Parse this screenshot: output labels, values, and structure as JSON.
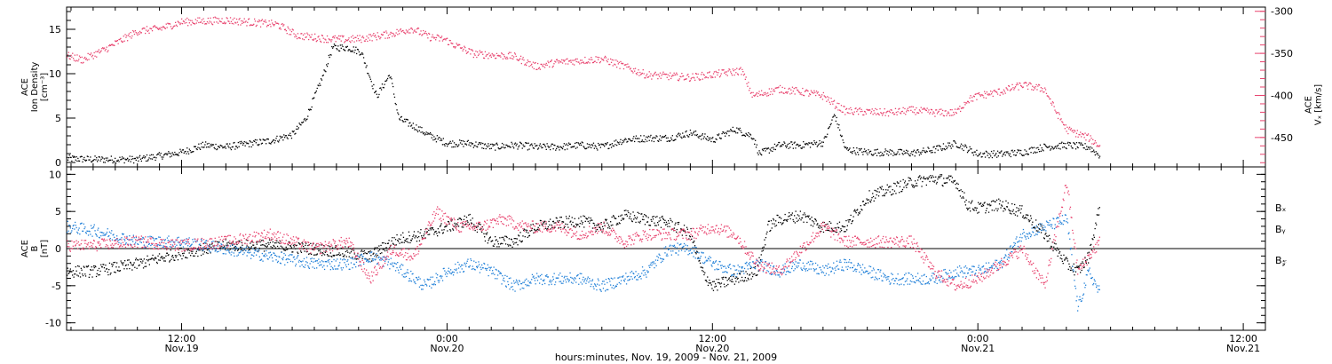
{
  "x_axis": {
    "caption": "hours:minutes, Nov. 19, 2009 - Nov. 21, 2009",
    "ticks": [
      {
        "time": "12:00",
        "date": "Nov.19",
        "hours": 12
      },
      {
        "time": "0:00",
        "date": "Nov.20",
        "hours": 24
      },
      {
        "time": "12:00",
        "date": "Nov.20",
        "hours": 36
      },
      {
        "time": "0:00",
        "date": "Nov.21",
        "hours": 48
      },
      {
        "time": "12:00",
        "date": "Nov.21",
        "hours": 60
      }
    ]
  },
  "colors": {
    "black": "#000000",
    "pink": "#e8436e",
    "blue": "#1f7fd8"
  },
  "chart_data": [
    {
      "type": "scatter",
      "name_panel": "top",
      "xlim_hours": [
        6.8,
        61.0
      ],
      "left_axis": {
        "label_lines": [
          "ACE",
          "Ion Density",
          "[cm⁻³]"
        ],
        "ylim": [
          -0.5,
          17.5
        ],
        "ticks": [
          "0",
          "5",
          "10",
          "15"
        ]
      },
      "right_axis": {
        "label_lines": [
          "ACE",
          "Vₓ [km/s]"
        ],
        "ylim": [
          -485,
          -295
        ],
        "ticks": [
          "-300",
          "-350",
          "-400",
          "-450"
        ]
      },
      "series": [
        {
          "axis": "left",
          "color": "#000000",
          "points": [
            [
              6.8,
              0.5
            ],
            [
              8,
              0.4
            ],
            [
              10,
              0.4
            ],
            [
              12,
              1.2
            ],
            [
              13,
              2.0
            ],
            [
              14,
              1.8
            ],
            [
              16,
              2.5
            ],
            [
              17,
              3.2
            ],
            [
              17.6,
              5
            ],
            [
              18.4,
              10
            ],
            [
              18.8,
              13
            ],
            [
              19.5,
              13
            ],
            [
              20.1,
              12.5
            ],
            [
              20.8,
              7.5
            ],
            [
              21.4,
              10
            ],
            [
              21.8,
              5
            ],
            [
              22.6,
              4
            ],
            [
              23.1,
              3.2
            ],
            [
              24,
              2.2
            ],
            [
              25,
              2.2
            ],
            [
              26,
              1.8
            ],
            [
              27,
              2.0
            ],
            [
              28,
              1.8
            ],
            [
              29,
              1.8
            ],
            [
              30,
              2.0
            ],
            [
              31,
              1.8
            ],
            [
              32,
              2.6
            ],
            [
              33,
              2.8
            ],
            [
              34,
              2.8
            ],
            [
              35,
              3.4
            ],
            [
              36,
              2.6
            ],
            [
              37,
              3.8
            ],
            [
              37.8,
              3.0
            ],
            [
              38.1,
              1.0
            ],
            [
              39,
              2.0
            ],
            [
              40,
              2.0
            ],
            [
              41,
              2.3
            ],
            [
              41.5,
              5.5
            ],
            [
              42,
              1.5
            ],
            [
              43,
              1.2
            ],
            [
              44,
              1.2
            ],
            [
              45,
              1.1
            ],
            [
              46,
              1.5
            ],
            [
              47,
              2.2
            ],
            [
              48,
              1.0
            ],
            [
              49,
              1.0
            ],
            [
              50,
              1.2
            ],
            [
              51,
              1.8
            ],
            [
              52,
              2.0
            ],
            [
              53,
              1.8
            ],
            [
              53.5,
              0.8
            ]
          ]
        },
        {
          "axis": "right",
          "color": "#e8436e",
          "points": [
            [
              6.8,
              -352
            ],
            [
              7.5,
              -357
            ],
            [
              8.5,
              -345
            ],
            [
              10,
              -323
            ],
            [
              11,
              -320
            ],
            [
              12,
              -312
            ],
            [
              14,
              -310
            ],
            [
              16.3,
              -315
            ],
            [
              17.2,
              -328
            ],
            [
              18.5,
              -332
            ],
            [
              19.5,
              -333
            ],
            [
              20.1,
              -332
            ],
            [
              21.5,
              -326
            ],
            [
              22.4,
              -320
            ],
            [
              23.2,
              -330
            ],
            [
              23.9,
              -333
            ],
            [
              24.2,
              -338
            ],
            [
              25.2,
              -350
            ],
            [
              27,
              -353
            ],
            [
              28,
              -365
            ],
            [
              29,
              -360
            ],
            [
              31,
              -356
            ],
            [
              32,
              -365
            ],
            [
              33,
              -375
            ],
            [
              35,
              -378
            ],
            [
              37.3,
              -370
            ],
            [
              37.8,
              -400
            ],
            [
              39,
              -392
            ],
            [
              40,
              -395
            ],
            [
              41,
              -400
            ],
            [
              41.5,
              -410
            ],
            [
              42,
              -418
            ],
            [
              44,
              -420
            ],
            [
              45,
              -417
            ],
            [
              46,
              -420
            ],
            [
              47,
              -420
            ],
            [
              47.5,
              -405
            ],
            [
              48,
              -400
            ],
            [
              49,
              -395
            ],
            [
              50,
              -387
            ],
            [
              51,
              -392
            ],
            [
              51.5,
              -418
            ],
            [
              52,
              -440
            ],
            [
              53,
              -450
            ],
            [
              53.5,
              -460
            ]
          ]
        }
      ]
    },
    {
      "type": "scatter",
      "name_panel": "bottom",
      "xlim_hours": [
        6.8,
        61.0
      ],
      "left_axis": {
        "label_lines": [
          "ACE",
          "B",
          "[nT]"
        ],
        "ylim": [
          -11,
          11
        ],
        "ticks": [
          "10",
          "5",
          "0",
          "-5",
          "-10"
        ]
      },
      "zero_line": true,
      "legend": {
        "placement": "right",
        "entries": [
          "Bₓ",
          "Bᵧ",
          "B𝓏"
        ]
      },
      "series": [
        {
          "name": "Bₓ",
          "color": "#000000",
          "points": [
            [
              6.8,
              -3
            ],
            [
              8,
              -3
            ],
            [
              10,
              -2
            ],
            [
              12,
              -0.5
            ],
            [
              14,
              0.5
            ],
            [
              16,
              0.5
            ],
            [
              18,
              0
            ],
            [
              19.5,
              -0.5
            ],
            [
              20.5,
              -1
            ],
            [
              21.5,
              1
            ],
            [
              22,
              1.5
            ],
            [
              23,
              2
            ],
            [
              24,
              3
            ],
            [
              25,
              4
            ],
            [
              26,
              1
            ],
            [
              27,
              1
            ],
            [
              28,
              3
            ],
            [
              29,
              3.5
            ],
            [
              30,
              3.8
            ],
            [
              31,
              3
            ],
            [
              32,
              4.5
            ],
            [
              33,
              4
            ],
            [
              34,
              3.5
            ],
            [
              35,
              2
            ],
            [
              35.5,
              -3
            ],
            [
              36,
              -5
            ],
            [
              37,
              -4
            ],
            [
              38,
              -3
            ],
            [
              38.5,
              3
            ],
            [
              39,
              4
            ],
            [
              40,
              4.5
            ],
            [
              41,
              3
            ],
            [
              42,
              3
            ],
            [
              43,
              7
            ],
            [
              44,
              8
            ],
            [
              45,
              9
            ],
            [
              46,
              9.5
            ],
            [
              47,
              9
            ],
            [
              47.5,
              6
            ],
            [
              48,
              5.5
            ],
            [
              49,
              6
            ],
            [
              50,
              5
            ],
            [
              51,
              2
            ],
            [
              52,
              -2
            ],
            [
              52.5,
              -3
            ],
            [
              53,
              -1
            ],
            [
              53.5,
              6
            ]
          ]
        },
        {
          "name": "Bᵧ",
          "color": "#1f7fd8",
          "points": [
            [
              6.8,
              3
            ],
            [
              8,
              2.5
            ],
            [
              10,
              1
            ],
            [
              12,
              1
            ],
            [
              14,
              0
            ],
            [
              16,
              -1
            ],
            [
              18,
              -2
            ],
            [
              19.5,
              -2
            ],
            [
              20.5,
              -1
            ],
            [
              21.5,
              -2
            ],
            [
              22,
              -3
            ],
            [
              23,
              -5
            ],
            [
              24,
              -3
            ],
            [
              25,
              -2
            ],
            [
              26,
              -3
            ],
            [
              27,
              -5
            ],
            [
              28,
              -4
            ],
            [
              29,
              -4
            ],
            [
              30,
              -4
            ],
            [
              31,
              -5
            ],
            [
              32,
              -4
            ],
            [
              33,
              -3
            ],
            [
              34,
              0
            ],
            [
              35,
              0
            ],
            [
              36,
              -2
            ],
            [
              37,
              -3
            ],
            [
              38,
              -2
            ],
            [
              39,
              -3
            ],
            [
              40,
              -2
            ],
            [
              41,
              -3
            ],
            [
              42,
              -2
            ],
            [
              43,
              -3
            ],
            [
              44,
              -4
            ],
            [
              45,
              -4
            ],
            [
              46,
              -4
            ],
            [
              47,
              -3
            ],
            [
              48,
              -3
            ],
            [
              49,
              -2
            ],
            [
              50,
              2
            ],
            [
              51,
              3
            ],
            [
              52,
              4
            ],
            [
              52.5,
              -8
            ],
            [
              53,
              -3
            ],
            [
              53.5,
              -6
            ]
          ]
        },
        {
          "name": "B𝓏",
          "color": "#e8436e",
          "points": [
            [
              6.8,
              0.5
            ],
            [
              8,
              0.5
            ],
            [
              10,
              1
            ],
            [
              12,
              0.5
            ],
            [
              14,
              1
            ],
            [
              16,
              2
            ],
            [
              18,
              0
            ],
            [
              19.5,
              1
            ],
            [
              20.5,
              -4
            ],
            [
              21.5,
              0
            ],
            [
              22.5,
              -1
            ],
            [
              23.5,
              5
            ],
            [
              24.5,
              3
            ],
            [
              25.5,
              3
            ],
            [
              26.5,
              4
            ],
            [
              27.5,
              3
            ],
            [
              29,
              3
            ],
            [
              30,
              2
            ],
            [
              31,
              3
            ],
            [
              32,
              1
            ],
            [
              33,
              2
            ],
            [
              34,
              2
            ],
            [
              35,
              2
            ],
            [
              36,
              3
            ],
            [
              37,
              2
            ],
            [
              38,
              -2
            ],
            [
              39,
              -3
            ],
            [
              40,
              0
            ],
            [
              41,
              3
            ],
            [
              42,
              1
            ],
            [
              43,
              1
            ],
            [
              44,
              1
            ],
            [
              45,
              1
            ],
            [
              46,
              -3
            ],
            [
              47,
              -5
            ],
            [
              48,
              -4
            ],
            [
              49,
              -2
            ],
            [
              50,
              0
            ],
            [
              51,
              -5
            ],
            [
              52,
              9
            ],
            [
              52.5,
              -3
            ],
            [
              53,
              -1
            ],
            [
              53.5,
              1
            ]
          ]
        }
      ]
    }
  ]
}
